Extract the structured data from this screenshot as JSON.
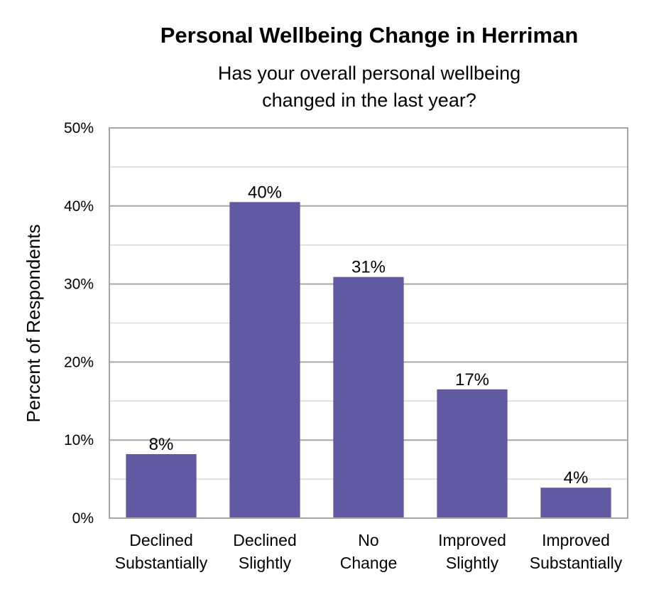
{
  "chart_data": {
    "type": "bar",
    "title": "Personal Wellbeing Change in Herriman",
    "subtitle_lines": [
      "Has your overall personal wellbeing",
      "changed in the last year?"
    ],
    "xlabel": "",
    "ylabel": "Percent of Respondents",
    "categories": [
      [
        "Declined",
        "Substantially"
      ],
      [
        "Declined",
        "Slightly"
      ],
      [
        "No",
        "Change"
      ],
      [
        "Improved",
        "Slightly"
      ],
      [
        "Improved",
        "Substantially"
      ]
    ],
    "values": [
      8.2,
      40.5,
      30.9,
      16.5,
      3.9
    ],
    "data_labels": [
      "8%",
      "40%",
      "31%",
      "17%",
      "4%"
    ],
    "ylim": [
      0,
      50
    ],
    "y_ticks": [
      0,
      10,
      20,
      30,
      40,
      50
    ],
    "y_tick_labels": [
      "0%",
      "10%",
      "20%",
      "30%",
      "40%",
      "50%"
    ],
    "grid": true,
    "legend": "none",
    "colors": {
      "bar": "#615aa3",
      "major_grid": "#a6a6a6",
      "minor_grid": "#d9d9d9",
      "plot_border": "#a6a6a6"
    }
  }
}
